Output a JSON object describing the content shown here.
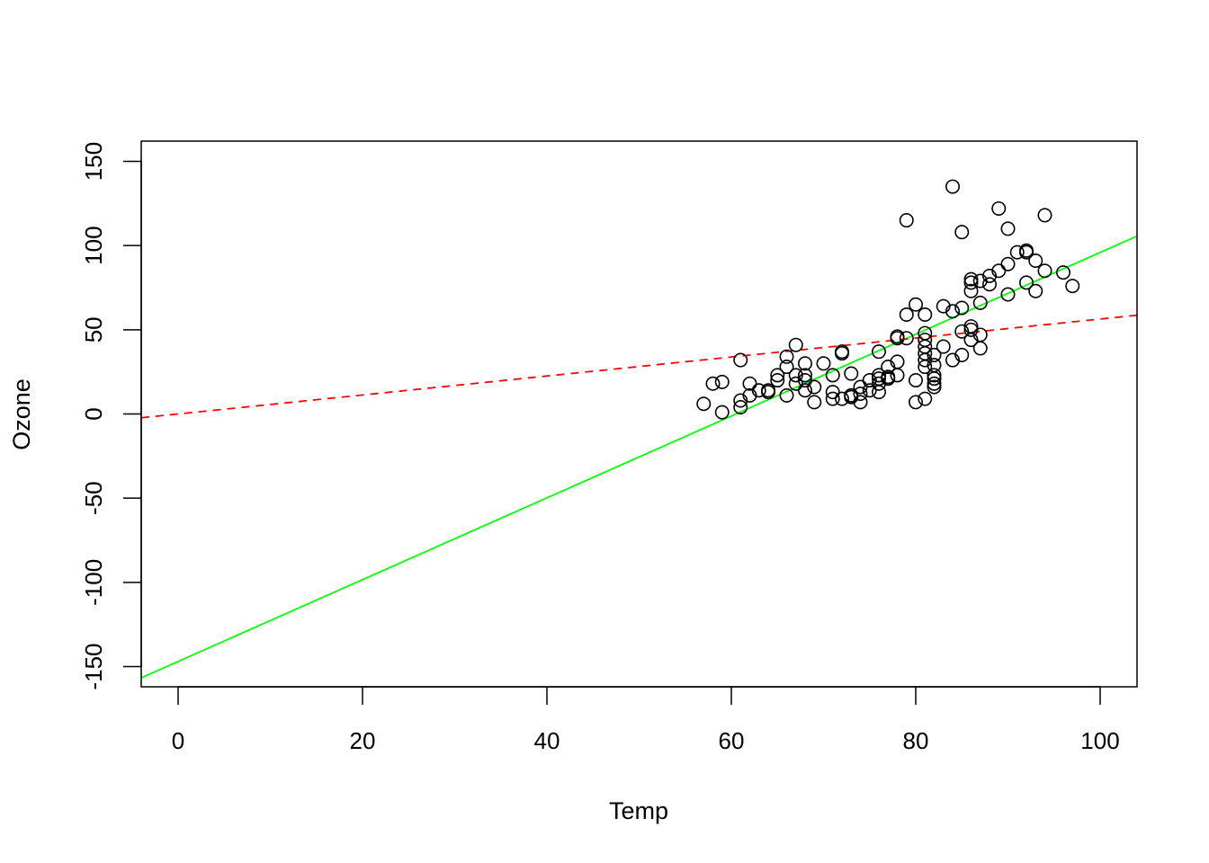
{
  "chart_data": {
    "type": "scatter",
    "title": "",
    "xlabel": "Temp",
    "ylabel": "Ozone",
    "xlim": [
      -4,
      104
    ],
    "ylim": [
      -162,
      162
    ],
    "x_ticks": [
      0,
      20,
      40,
      60,
      80,
      100
    ],
    "x_tick_labels": [
      "0",
      "20",
      "40",
      "60",
      "80",
      "100"
    ],
    "y_ticks": [
      -150,
      -100,
      -50,
      0,
      50,
      100,
      150
    ],
    "y_tick_labels": [
      "-150",
      "-100",
      "-50",
      "0",
      "50",
      "100",
      "150"
    ],
    "grid": false,
    "legend": "none",
    "point_color": "#000000",
    "points": [
      [
        57,
        6
      ],
      [
        58,
        18
      ],
      [
        59,
        19
      ],
      [
        59,
        1
      ],
      [
        61,
        32
      ],
      [
        61,
        8
      ],
      [
        61,
        4
      ],
      [
        62,
        18
      ],
      [
        62,
        11
      ],
      [
        63,
        14
      ],
      [
        64,
        13
      ],
      [
        64,
        14
      ],
      [
        65,
        23
      ],
      [
        65,
        20
      ],
      [
        66,
        28
      ],
      [
        66,
        34
      ],
      [
        66,
        11
      ],
      [
        67,
        41
      ],
      [
        67,
        23
      ],
      [
        67,
        18
      ],
      [
        68,
        30
      ],
      [
        68,
        23
      ],
      [
        68,
        20
      ],
      [
        68,
        14
      ],
      [
        69,
        7
      ],
      [
        69,
        16
      ],
      [
        70,
        30
      ],
      [
        71,
        23
      ],
      [
        71,
        13
      ],
      [
        71,
        9
      ],
      [
        72,
        37
      ],
      [
        72,
        36
      ],
      [
        72,
        9
      ],
      [
        73,
        24
      ],
      [
        73,
        11
      ],
      [
        73,
        10
      ],
      [
        73,
        11
      ],
      [
        74,
        16
      ],
      [
        74,
        12
      ],
      [
        74,
        7
      ],
      [
        75,
        20
      ],
      [
        75,
        14
      ],
      [
        76,
        37
      ],
      [
        76,
        23
      ],
      [
        76,
        21
      ],
      [
        76,
        18
      ],
      [
        76,
        13
      ],
      [
        77,
        28
      ],
      [
        77,
        22
      ],
      [
        77,
        21
      ],
      [
        78,
        46
      ],
      [
        78,
        45
      ],
      [
        78,
        31
      ],
      [
        78,
        23
      ],
      [
        79,
        115
      ],
      [
        79,
        59
      ],
      [
        79,
        45
      ],
      [
        80,
        65
      ],
      [
        80,
        20
      ],
      [
        80,
        7
      ],
      [
        81,
        59
      ],
      [
        81,
        48
      ],
      [
        81,
        44
      ],
      [
        81,
        40
      ],
      [
        81,
        36
      ],
      [
        81,
        32
      ],
      [
        81,
        28
      ],
      [
        81,
        9
      ],
      [
        82,
        35
      ],
      [
        82,
        29
      ],
      [
        82,
        23
      ],
      [
        82,
        21
      ],
      [
        82,
        18
      ],
      [
        82,
        16
      ],
      [
        83,
        64
      ],
      [
        83,
        40
      ],
      [
        84,
        135
      ],
      [
        84,
        61
      ],
      [
        84,
        32
      ],
      [
        85,
        108
      ],
      [
        85,
        63
      ],
      [
        85,
        49
      ],
      [
        85,
        35
      ],
      [
        86,
        80
      ],
      [
        86,
        78
      ],
      [
        86,
        73
      ],
      [
        86,
        52
      ],
      [
        86,
        50
      ],
      [
        86,
        44
      ],
      [
        87,
        79
      ],
      [
        87,
        66
      ],
      [
        87,
        47
      ],
      [
        87,
        39
      ],
      [
        88,
        82
      ],
      [
        88,
        77
      ],
      [
        89,
        122
      ],
      [
        89,
        85
      ],
      [
        90,
        110
      ],
      [
        90,
        89
      ],
      [
        90,
        71
      ],
      [
        91,
        96
      ],
      [
        92,
        97
      ],
      [
        92,
        96
      ],
      [
        92,
        78
      ],
      [
        93,
        91
      ],
      [
        93,
        73
      ],
      [
        94,
        118
      ],
      [
        94,
        85
      ],
      [
        96,
        84
      ],
      [
        97,
        76
      ]
    ],
    "lines": [
      {
        "style": "solid",
        "color": "#00ff00",
        "intercept": -146.99,
        "slope": 2.4287
      },
      {
        "style": "dashed",
        "color": "#ff0000",
        "intercept": 0,
        "slope": 0.5636
      }
    ]
  }
}
